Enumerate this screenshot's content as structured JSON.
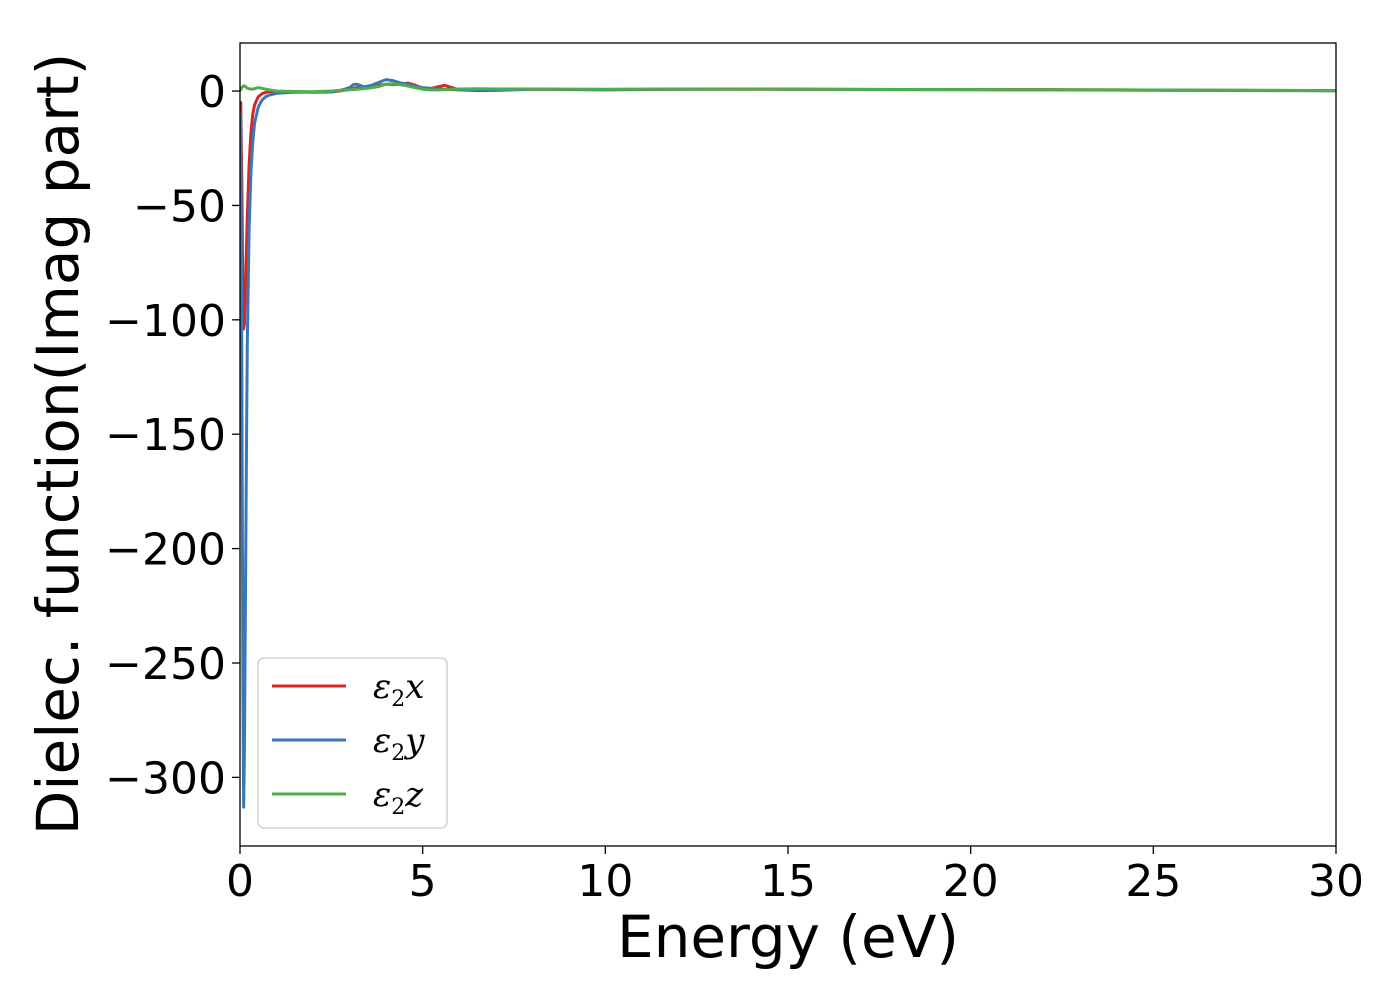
{
  "chart_data": {
    "type": "line",
    "title": "",
    "xlabel": "Energy (eV)",
    "ylabel": "Dielec. function(Imag part)",
    "xlim": [
      0,
      30
    ],
    "ylim": [
      -330,
      21
    ],
    "xticks": [
      0,
      5,
      10,
      15,
      20,
      25,
      30
    ],
    "xtick_labels": [
      "0",
      "5",
      "10",
      "15",
      "20",
      "25",
      "30"
    ],
    "yticks": [
      0,
      -50,
      -100,
      -150,
      -200,
      -250,
      -300
    ],
    "ytick_labels": [
      "0",
      "−50",
      "−100",
      "−150",
      "−200",
      "−250",
      "−300"
    ],
    "grid": false,
    "legend_position": "lower-left",
    "series": [
      {
        "name": "ε₂x",
        "legend_main": "ε",
        "legend_sub": "2",
        "legend_var": "x",
        "color": "#d62728",
        "x": [
          0.02,
          0.05,
          0.08,
          0.1,
          0.12,
          0.15,
          0.2,
          0.25,
          0.3,
          0.35,
          0.4,
          0.5,
          0.6,
          0.7,
          0.8,
          1.0,
          1.2,
          1.5,
          2.0,
          2.5,
          2.8,
          3.0,
          3.2,
          3.4,
          3.6,
          3.8,
          4.0,
          4.2,
          4.4,
          4.6,
          4.8,
          5.0,
          5.2,
          5.4,
          5.6,
          5.8,
          6.0,
          6.5,
          7.0,
          8.0,
          10,
          12,
          14,
          16,
          18,
          20,
          22,
          24,
          26,
          28,
          30
        ],
        "y": [
          -5,
          -40,
          -90,
          -104,
          -102,
          -85,
          -55,
          -32,
          -18,
          -10,
          -6,
          -2.5,
          -1.2,
          -0.6,
          -0.3,
          -0.2,
          -0.2,
          -0.3,
          -0.5,
          -0.4,
          0.2,
          0.8,
          1.5,
          1.8,
          2.2,
          2.5,
          3.0,
          2.8,
          3.0,
          3.5,
          2.5,
          1.2,
          1.0,
          1.8,
          2.5,
          1.5,
          0.5,
          0.2,
          0.3,
          0.8,
          0.5,
          0.8,
          0.8,
          0.7,
          0.7,
          0.6,
          0.6,
          0.5,
          0.4,
          0.3,
          0.2
        ]
      },
      {
        "name": "ε₂y",
        "legend_main": "ε",
        "legend_sub": "2",
        "legend_var": "y",
        "color": "#3a78b5",
        "x": [
          0.02,
          0.05,
          0.08,
          0.1,
          0.12,
          0.15,
          0.18,
          0.2,
          0.25,
          0.3,
          0.35,
          0.4,
          0.5,
          0.6,
          0.7,
          0.8,
          1.0,
          1.2,
          1.5,
          2.0,
          2.5,
          2.8,
          3.0,
          3.1,
          3.2,
          3.4,
          3.6,
          3.8,
          4.0,
          4.2,
          4.4,
          4.6,
          4.8,
          5.0,
          5.2,
          5.4,
          5.6,
          5.8,
          6.0,
          6.5,
          7.0,
          8.0,
          10,
          12,
          14,
          16,
          18,
          20,
          22,
          24,
          26,
          28,
          30
        ],
        "y": [
          -10,
          -120,
          -260,
          -313,
          -290,
          -220,
          -150,
          -110,
          -60,
          -35,
          -22,
          -14,
          -7,
          -4,
          -2.5,
          -1.8,
          -1.0,
          -0.8,
          -0.5,
          -0.4,
          -0.3,
          0.5,
          1.5,
          2.8,
          3.0,
          1.8,
          2.5,
          3.8,
          5.0,
          4.5,
          3.5,
          3.0,
          2.0,
          1.5,
          1.2,
          1.0,
          0.8,
          0.6,
          0.5,
          0.4,
          0.5,
          0.8,
          0.7,
          0.8,
          0.9,
          0.8,
          0.6,
          0.6,
          0.5,
          0.4,
          0.3,
          0.2,
          0.1
        ]
      },
      {
        "name": "ε₂z",
        "legend_main": "ε",
        "legend_sub": "2",
        "legend_var": "z",
        "color": "#4daf4a",
        "x": [
          0.02,
          0.05,
          0.1,
          0.15,
          0.2,
          0.3,
          0.4,
          0.5,
          0.6,
          0.8,
          1.0,
          1.5,
          2.0,
          2.5,
          3.0,
          3.5,
          3.8,
          4.0,
          4.2,
          4.5,
          4.8,
          5.0,
          5.2,
          5.5,
          5.8,
          6.0,
          6.5,
          7.0,
          8.0,
          10,
          12,
          14,
          16,
          18,
          20,
          22,
          24,
          26,
          28,
          30
        ],
        "y": [
          0.5,
          1.5,
          2.3,
          2.0,
          1.2,
          0.8,
          1.0,
          1.5,
          1.2,
          0.5,
          0.0,
          -0.2,
          -0.3,
          0.0,
          0.5,
          1.2,
          2.0,
          3.0,
          3.2,
          2.5,
          1.5,
          0.8,
          0.5,
          0.5,
          0.8,
          0.9,
          1.0,
          0.9,
          0.9,
          0.8,
          0.9,
          0.9,
          0.8,
          0.7,
          0.6,
          0.5,
          0.5,
          0.4,
          0.3,
          0.2
        ]
      }
    ]
  }
}
